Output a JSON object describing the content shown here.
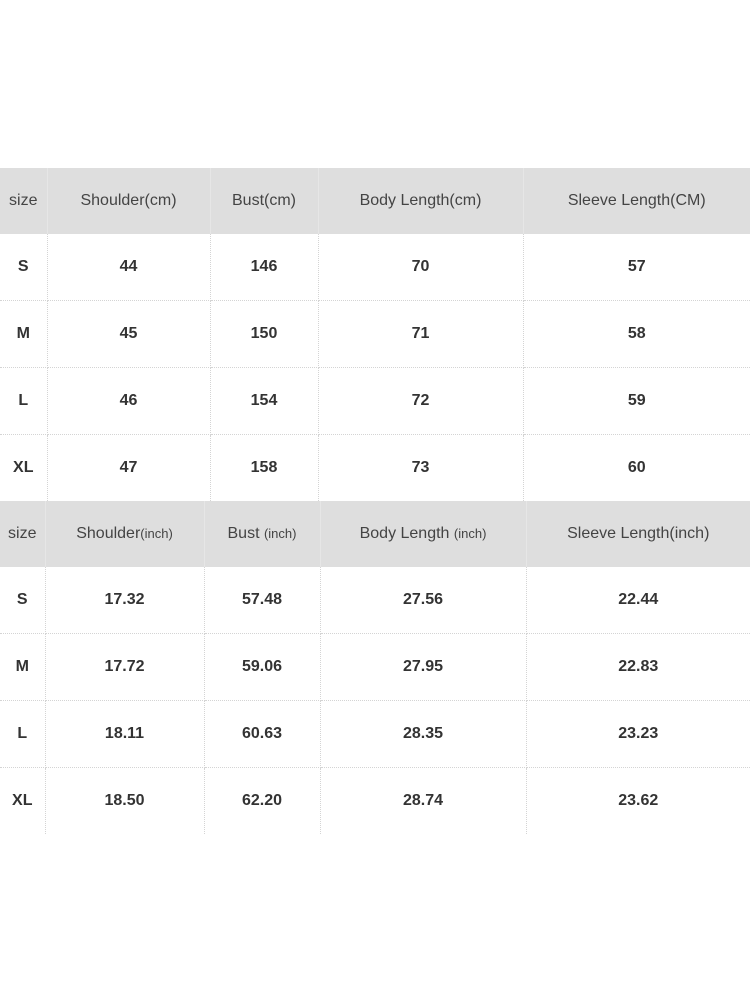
{
  "cm_table": {
    "headers": [
      "size",
      "Shoulder(cm)",
      "Bust(cm)",
      "Body Length(cm)",
      "Sleeve Length(CM)"
    ],
    "rows": [
      [
        "S",
        "44",
        "146",
        "70",
        "57"
      ],
      [
        "M",
        "45",
        "150",
        "71",
        "58"
      ],
      [
        "L",
        "46",
        "154",
        "72",
        "59"
      ],
      [
        "XL",
        "47",
        "158",
        "73",
        "60"
      ]
    ]
  },
  "inch_table": {
    "headers": [
      {
        "main": "size",
        "unit": ""
      },
      {
        "main": "Shoulder",
        "unit": "(inch)"
      },
      {
        "main": "Bust ",
        "unit": "(inch)"
      },
      {
        "main": "Body Length ",
        "unit": "(inch)"
      },
      {
        "main": "Sleeve Length(inch)",
        "unit": ""
      }
    ],
    "rows": [
      [
        "S",
        "17.32",
        "57.48",
        "27.56",
        "22.44"
      ],
      [
        "M",
        "17.72",
        "59.06",
        "27.95",
        "22.83"
      ],
      [
        "L",
        "18.11",
        "60.63",
        "28.35",
        "23.23"
      ],
      [
        "XL",
        "18.50",
        "62.20",
        "28.74",
        "23.62"
      ]
    ]
  },
  "colors": {
    "header_bg": "#dedede",
    "text": "#333333"
  }
}
